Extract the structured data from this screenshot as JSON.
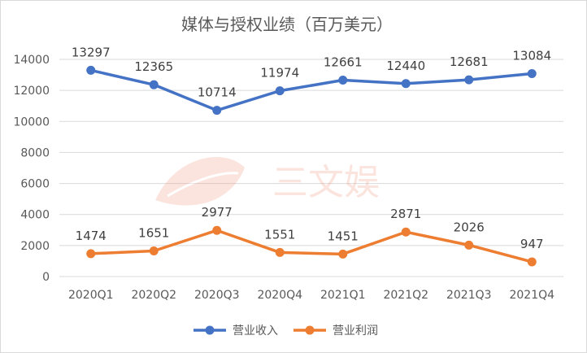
{
  "chart_data": {
    "type": "line",
    "title": "媒体与授权业绩（百万美元）",
    "categories": [
      "2020Q1",
      "2020Q2",
      "2020Q3",
      "2020Q4",
      "2021Q1",
      "2021Q2",
      "2021Q3",
      "2021Q4"
    ],
    "series": [
      {
        "name": "营业收入",
        "color": "#4472c4",
        "values": [
          13297,
          12365,
          10714,
          11974,
          12661,
          12440,
          12681,
          13084
        ]
      },
      {
        "name": "营业利润",
        "color": "#ed7d31",
        "values": [
          1474,
          1651,
          2977,
          1551,
          1451,
          2871,
          2026,
          947
        ]
      }
    ],
    "ylim": [
      0,
      14000
    ],
    "yticks": [
      0,
      2000,
      4000,
      6000,
      8000,
      10000,
      12000,
      14000
    ],
    "grid": true,
    "legend_position": "bottom",
    "data_labels": true
  },
  "watermark": {
    "text": "三文娱"
  }
}
